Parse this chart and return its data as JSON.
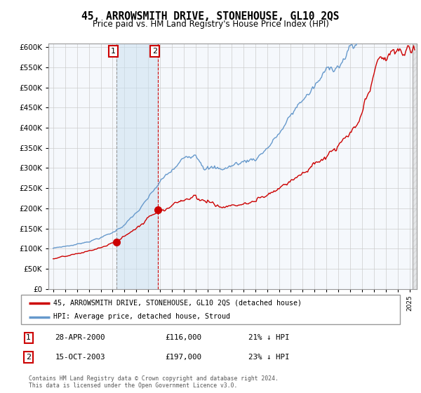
{
  "title": "45, ARROWSMITH DRIVE, STONEHOUSE, GL10 2QS",
  "subtitle": "Price paid vs. HM Land Registry's House Price Index (HPI)",
  "ylim": [
    0,
    610000
  ],
  "ytick_vals": [
    0,
    50000,
    100000,
    150000,
    200000,
    250000,
    300000,
    350000,
    400000,
    450000,
    500000,
    550000,
    600000
  ],
  "xlim_start": 1994.6,
  "xlim_end": 2025.6,
  "hpi_color": "#6699cc",
  "property_color": "#cc0000",
  "point1_x": 2000.32,
  "point1_y": 116000,
  "point2_x": 2003.79,
  "point2_y": 197000,
  "sale1_date": "28-APR-2000",
  "sale1_price": "£116,000",
  "sale1_hpi": "21% ↓ HPI",
  "sale2_date": "15-OCT-2003",
  "sale2_price": "£197,000",
  "sale2_hpi": "23% ↓ HPI",
  "legend_property": "45, ARROWSMITH DRIVE, STONEHOUSE, GL10 2QS (detached house)",
  "legend_hpi": "HPI: Average price, detached house, Stroud",
  "footnote": "Contains HM Land Registry data © Crown copyright and database right 2024.\nThis data is licensed under the Open Government Licence v3.0."
}
